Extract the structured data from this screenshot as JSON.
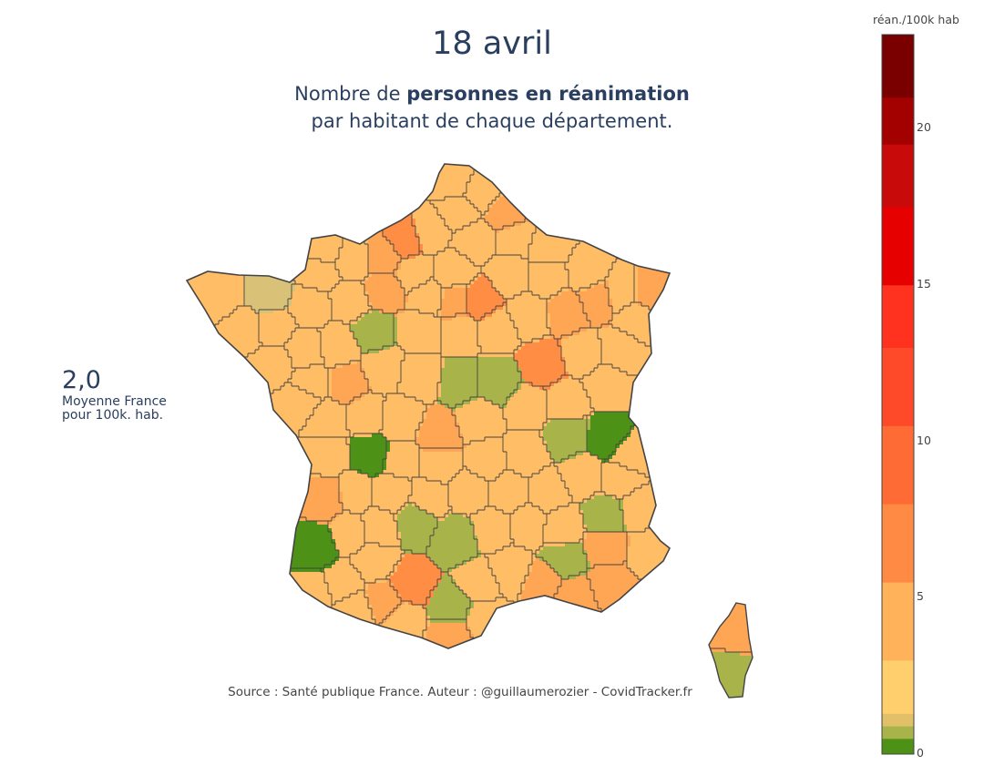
{
  "title": "18 avril",
  "subtitle": {
    "prefix": "Nombre de ",
    "bold": "personnes en réanimation",
    "line2": "par habitant de chaque département."
  },
  "average": {
    "value": "2,0",
    "label_line1": "Moyenne France",
    "label_line2": "pour 100k. hab."
  },
  "source": "Source : Santé publique France. Auteur : @guillaumerozier - CovidTracker.fr",
  "colorbar": {
    "title": "réan./100k hab",
    "min": 0,
    "max": 23,
    "ticks": [
      {
        "label": "0",
        "value": 0
      },
      {
        "label": "5",
        "value": 5
      },
      {
        "label": "10",
        "value": 10
      },
      {
        "label": "15",
        "value": 15
      },
      {
        "label": "20",
        "value": 20
      }
    ],
    "stops": [
      {
        "value": 0.0,
        "color": "#4d9216"
      },
      {
        "value": 0.5,
        "color": "#a8b34a"
      },
      {
        "value": 0.9,
        "color": "#e2c06a"
      },
      {
        "value": 1.3,
        "color": "#ffcf6e"
      },
      {
        "value": 3.0,
        "color": "#ffb25a"
      },
      {
        "value": 5.5,
        "color": "#ff8a44"
      },
      {
        "value": 8.0,
        "color": "#ff6b35"
      },
      {
        "value": 10.5,
        "color": "#ff4a2a"
      },
      {
        "value": 13.0,
        "color": "#ff3220"
      },
      {
        "value": 15.0,
        "color": "#e60000"
      },
      {
        "value": 17.5,
        "color": "#c80a0a"
      },
      {
        "value": 19.5,
        "color": "#a30000"
      },
      {
        "value": 21.0,
        "color": "#7a0000"
      },
      {
        "value": 23.0,
        "color": "#3a0000"
      }
    ]
  },
  "map": {
    "border_color": "#444444",
    "palette": {
      "green": "#4d9216",
      "olive": "#a8b34a",
      "khaki": "#d9c277",
      "yellow": "#ffcf6e",
      "light_orange": "#ffbd66",
      "orange": "#ffa655",
      "dark_orange": "#ff8e44"
    }
  }
}
